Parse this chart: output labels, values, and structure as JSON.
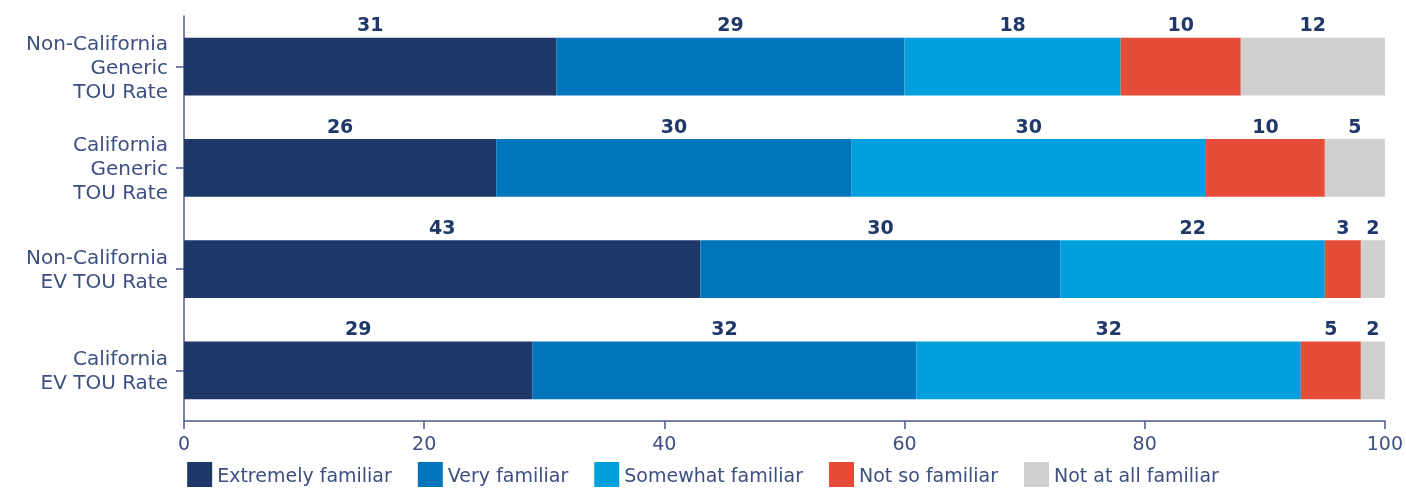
{
  "chart_data": {
    "type": "bar",
    "orientation": "horizontal",
    "stacked": true,
    "categories": [
      "Non-California\nGeneric\nTOU Rate",
      "California\nGeneric\nTOU Rate",
      "Non-California\nEV TOU Rate",
      "California\nEV TOU Rate"
    ],
    "series": [
      {
        "name": "Extremely familiar",
        "color": "#1f3769",
        "values": [
          31,
          26,
          43,
          29
        ],
        "value_labels": [
          "31",
          "26",
          "43",
          "29"
        ]
      },
      {
        "name": "Very familiar",
        "color": "#0075bb",
        "values": [
          29,
          29.6,
          30,
          32
        ],
        "value_labels": [
          "29",
          "30",
          "30",
          "32"
        ]
      },
      {
        "name": "Somewhat familiar",
        "color": "#00a0dc",
        "values": [
          18,
          29.5,
          22,
          32
        ],
        "value_labels": [
          "18",
          "30",
          "22",
          "32"
        ]
      },
      {
        "name": "Not so familiar",
        "color": "#e64c37",
        "values": [
          10,
          9.9,
          3,
          5
        ],
        "value_labels": [
          "10",
          "10",
          "3",
          "5"
        ]
      },
      {
        "name": "Not at all familiar",
        "color": "#d0cfcd",
        "values": [
          12,
          5,
          2,
          2
        ],
        "value_labels": [
          "12",
          "5",
          "2",
          "2"
        ]
      }
    ],
    "xlim": [
      0,
      100
    ],
    "xticks": [
      0,
      20,
      40,
      60,
      80,
      100
    ],
    "legend": "bottom"
  }
}
